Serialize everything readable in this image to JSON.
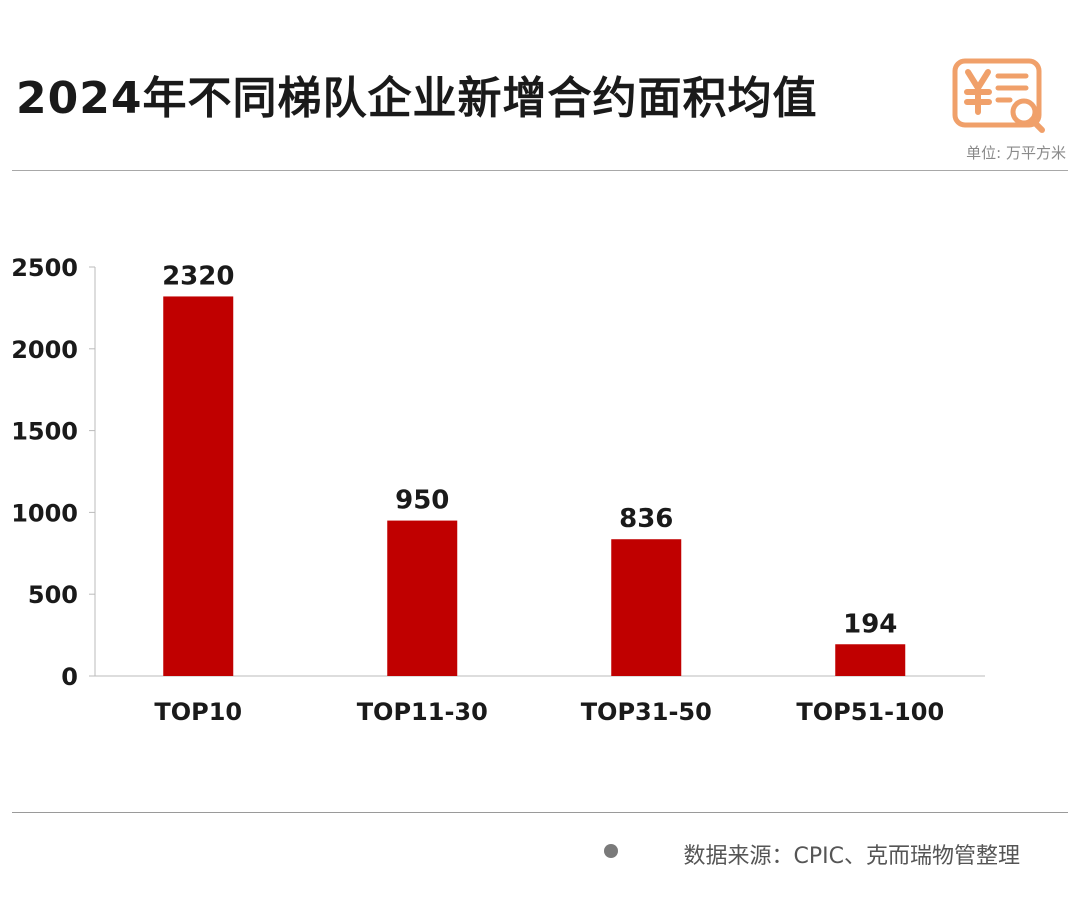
{
  "header": {
    "title": "2024年不同梯队企业新增合约面积均值",
    "unit": "单位: 万平方米",
    "logo_icon": "yuan-document-search-icon"
  },
  "footer": {
    "source": "数据来源：CPIC、克而瑞物管整理"
  },
  "colors": {
    "bar": "#c00000",
    "logo": "#f0a06a",
    "title": "#1a1a1a"
  },
  "chart_data": {
    "type": "bar",
    "title": "2024年不同梯队企业新增合约面积均值",
    "xlabel": "",
    "ylabel": "",
    "categories": [
      "TOP10",
      "TOP11-30",
      "TOP31-50",
      "TOP51-100"
    ],
    "values": [
      2320,
      950,
      836,
      194
    ],
    "data_labels": [
      "2320",
      "950",
      "836",
      "194"
    ],
    "yticks": [
      0,
      500,
      1000,
      1500,
      2000,
      2500
    ],
    "ylim": [
      0,
      2500
    ],
    "grid": false,
    "legend": "none"
  }
}
